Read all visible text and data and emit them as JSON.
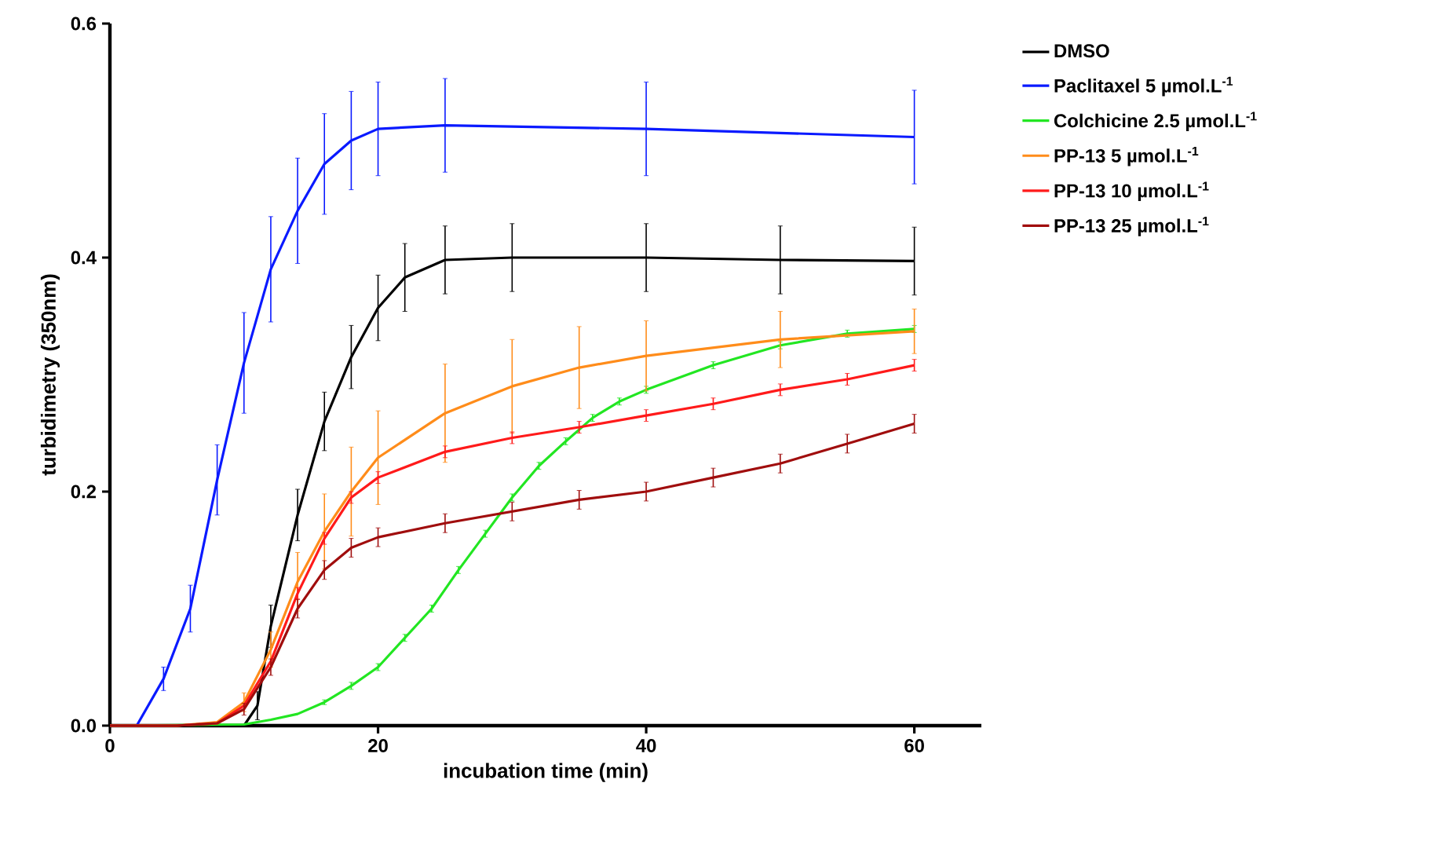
{
  "chart_data": {
    "type": "line",
    "xlabel": "incubation time (min)",
    "ylabel": "turbidimetry (350nm)",
    "xlim": [
      0,
      65
    ],
    "ylim": [
      0,
      0.6
    ],
    "xticks": [
      0,
      20,
      40,
      60
    ],
    "yticks": [
      {
        "value": 0,
        "label": "0.0"
      },
      {
        "value": 0.2,
        "label": "0.2"
      },
      {
        "value": 0.4,
        "label": "0.4"
      },
      {
        "value": 0.6,
        "label": "0.6"
      }
    ],
    "grid": false,
    "legend": "right",
    "marker": "none",
    "line_style": "solid",
    "series": [
      {
        "name": "DMSO",
        "color": "#000000",
        "x": [
          0,
          5,
          10,
          11,
          12,
          14,
          16,
          18,
          20,
          22,
          25,
          30,
          40,
          50,
          60
        ],
        "values": [
          0,
          0,
          0,
          0.017,
          0.085,
          0.18,
          0.26,
          0.315,
          0.357,
          0.383,
          0.398,
          0.4,
          0.4,
          0.398,
          0.397
        ],
        "errors": [
          null,
          null,
          null,
          0.012,
          0.018,
          0.022,
          0.025,
          0.027,
          0.028,
          0.029,
          0.029,
          0.029,
          0.029,
          0.029,
          0.029
        ]
      },
      {
        "name": "Paclitaxel 5 µmol.L$^{-1}$",
        "color": "#0a1aff",
        "x": [
          0,
          2,
          4,
          6,
          8,
          10,
          12,
          14,
          16,
          18,
          20,
          25,
          40,
          60
        ],
        "values": [
          0,
          0,
          0.04,
          0.1,
          0.21,
          0.31,
          0.39,
          0.44,
          0.48,
          0.5,
          0.51,
          0.513,
          0.51,
          0.503
        ],
        "errors": [
          null,
          null,
          0.01,
          0.02,
          0.03,
          0.043,
          0.045,
          0.045,
          0.043,
          0.042,
          0.04,
          0.04,
          0.04,
          0.04
        ]
      },
      {
        "name": "Colchicine 2.5 µmol.L$^{-1}$",
        "color": "#22e622",
        "x": [
          0,
          10,
          12,
          14,
          16,
          18,
          20,
          22,
          24,
          26,
          28,
          30,
          32,
          34,
          36,
          38,
          40,
          45,
          50,
          55,
          60
        ],
        "values": [
          0,
          0.001,
          0.005,
          0.01,
          0.02,
          0.034,
          0.05,
          0.075,
          0.1,
          0.133,
          0.164,
          0.195,
          0.222,
          0.243,
          0.263,
          0.277,
          0.287,
          0.308,
          0.325,
          0.335,
          0.339
        ],
        "errors": [
          null,
          null,
          null,
          null,
          0.002,
          0.003,
          0.003,
          0.003,
          0.003,
          0.003,
          0.003,
          0.003,
          0.003,
          0.003,
          0.003,
          0.003,
          0.003,
          0.003,
          0.003,
          0.003,
          0.003
        ]
      },
      {
        "name": "PP-13 5 µmol.L$^{-1}$",
        "color": "#ff8c1a",
        "x": [
          0,
          5,
          8,
          10,
          12,
          14,
          16,
          18,
          20,
          25,
          30,
          35,
          40,
          50,
          60
        ],
        "values": [
          0,
          0,
          0.003,
          0.02,
          0.065,
          0.123,
          0.166,
          0.2,
          0.229,
          0.267,
          0.29,
          0.306,
          0.316,
          0.33,
          0.337
        ],
        "errors": [
          null,
          null,
          null,
          0.008,
          0.015,
          0.025,
          0.032,
          0.038,
          0.04,
          0.042,
          0.04,
          0.035,
          0.03,
          0.024,
          0.019
        ]
      },
      {
        "name": "PP-13 10 µmol.L$^{-1}$",
        "color": "#ff1a1a",
        "x": [
          0,
          5,
          8,
          10,
          12,
          14,
          16,
          18,
          20,
          25,
          30,
          35,
          40,
          45,
          50,
          55,
          60
        ],
        "values": [
          0,
          0,
          0.002,
          0.017,
          0.055,
          0.113,
          0.16,
          0.195,
          0.212,
          0.234,
          0.246,
          0.255,
          0.265,
          0.275,
          0.287,
          0.296,
          0.308
        ],
        "errors": [
          null,
          null,
          null,
          null,
          null,
          0.005,
          0.005,
          0.005,
          0.005,
          0.005,
          0.005,
          0.005,
          0.005,
          0.005,
          0.005,
          0.005,
          0.005
        ]
      },
      {
        "name": "PP-13 25 µmol.L$^{-1}$",
        "color": "#a00d0d",
        "x": [
          0,
          5,
          8,
          10,
          12,
          14,
          16,
          18,
          20,
          25,
          30,
          35,
          40,
          45,
          50,
          55,
          60
        ],
        "values": [
          0,
          0,
          0.002,
          0.014,
          0.05,
          0.1,
          0.133,
          0.152,
          0.161,
          0.173,
          0.183,
          0.193,
          0.2,
          0.212,
          0.224,
          0.241,
          0.258
        ],
        "errors": [
          null,
          null,
          null,
          0.005,
          0.007,
          0.008,
          0.008,
          0.008,
          0.008,
          0.008,
          0.008,
          0.008,
          0.008,
          0.008,
          0.008,
          0.008,
          0.008
        ]
      }
    ]
  }
}
